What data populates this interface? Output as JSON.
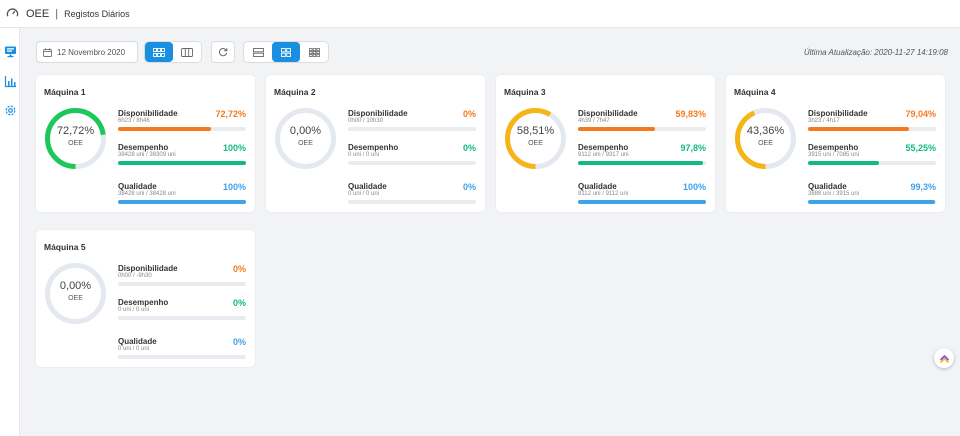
{
  "header": {
    "app_name": "OEE",
    "separator": "|",
    "page_title": "Registos Diários"
  },
  "toolbar": {
    "date": "12 Novembro 2020",
    "last_update": "Última Atualização: 2020-11-27 14:19:08"
  },
  "colors": {
    "disponibilidade": "#f47a20",
    "desempenho": "#12b886",
    "qualidade": "#3ea2ea",
    "green_gauge": "#1cc85a",
    "orange_gauge": "#f5b517",
    "accent": "#1a8fe0"
  },
  "oee_label": "OEE",
  "metric_names": {
    "disp": "Disponibilidade",
    "des": "Desempenho",
    "qual": "Qualidade"
  },
  "machines": [
    {
      "name": "Máquina 1",
      "oee": "72,72%",
      "oee_value": 0.7272,
      "gauge_color": "#1cc85a",
      "disp": {
        "value": "72,72%",
        "detail": "6h23 / 8h46",
        "fill": 0.7272
      },
      "des": {
        "value": "100%",
        "detail": "38428 uni / 38309 uni",
        "fill": 1.0
      },
      "qual": {
        "value": "100%",
        "detail": "38428 uni / 38428 uni",
        "fill": 1.0
      }
    },
    {
      "name": "Máquina 2",
      "oee": "0,00%",
      "oee_value": 0,
      "gauge_color": "#1cc85a",
      "disp": {
        "value": "0%",
        "detail": "0h00 / 10h30",
        "fill": 0
      },
      "des": {
        "value": "0%",
        "detail": "0 uni / 0 uni",
        "fill": 0
      },
      "qual": {
        "value": "0%",
        "detail": "0 uni / 0 uni",
        "fill": 0
      }
    },
    {
      "name": "Máquina 3",
      "oee": "58,51%",
      "oee_value": 0.5851,
      "gauge_color": "#f5b517",
      "disp": {
        "value": "59,83%",
        "detail": "4h39 / 7h47",
        "fill": 0.5983
      },
      "des": {
        "value": "97,8%",
        "detail": "9112 uni / 9317 uni",
        "fill": 0.978
      },
      "qual": {
        "value": "100%",
        "detail": "9112 uni / 9112 uni",
        "fill": 1.0
      }
    },
    {
      "name": "Máquina 4",
      "oee": "43,36%",
      "oee_value": 0.4336,
      "gauge_color": "#f5b517",
      "disp": {
        "value": "79,04%",
        "detail": "3h23 / 4h17",
        "fill": 0.7904
      },
      "des": {
        "value": "55,25%",
        "detail": "3915 uni / 7085 uni",
        "fill": 0.5525
      },
      "qual": {
        "value": "99,3%",
        "detail": "3888 uni / 3915 uni",
        "fill": 0.993
      }
    },
    {
      "name": "Máquina 5",
      "oee": "0,00%",
      "oee_value": 0,
      "gauge_color": "#1cc85a",
      "disp": {
        "value": "0%",
        "detail": "0h00 / -9h30",
        "fill": 0
      },
      "des": {
        "value": "0%",
        "detail": "0 uni / 0 uni",
        "fill": 0
      },
      "qual": {
        "value": "0%",
        "detail": "0 uni / 0 uni",
        "fill": 0
      }
    }
  ],
  "icons": {
    "logo": "gauge-logo-icon",
    "sidebar": [
      "monitor-icon",
      "bar-chart-icon",
      "settings-icon"
    ],
    "toolbar": [
      "calendar-icon",
      "grid-icon",
      "columns-icon",
      "refresh-icon",
      "rows-icon",
      "grid-small-icon",
      "grid-large-icon"
    ],
    "fab": "chevron-up-icon"
  }
}
